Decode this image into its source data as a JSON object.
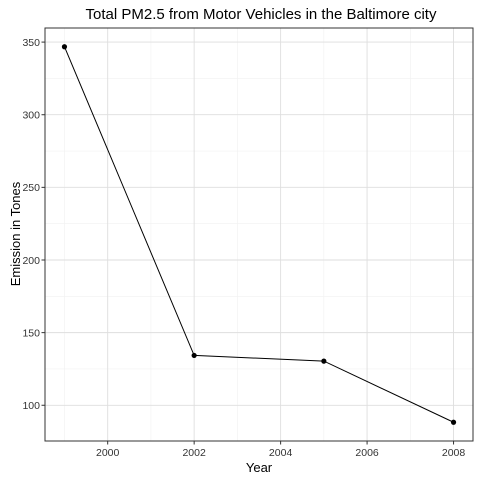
{
  "chart_data": {
    "type": "line",
    "title": "Total PM2.5 from Motor Vehicles in the Baltimore city",
    "xlabel": "Year",
    "ylabel": "Emission in Tones",
    "x": [
      1999,
      2002,
      2005,
      2008
    ],
    "series": [
      {
        "values": [
          346.8,
          134.3,
          130.4,
          88.3
        ]
      }
    ],
    "xlim": [
      1998.55,
      2008.45
    ],
    "ylim": [
      75.4,
      359.7
    ],
    "xticks": [
      2000,
      2002,
      2004,
      2006,
      2008
    ],
    "yticks": [
      100,
      150,
      200,
      250,
      300,
      350
    ],
    "x_tick_labels": [
      "2000",
      "2002",
      "2004",
      "2006",
      "2008"
    ],
    "y_tick_labels": [
      "100",
      "150",
      "200",
      "250",
      "300",
      "350"
    ],
    "grid": true,
    "legend": "none",
    "colors": {
      "line": "#000000",
      "point": "#000000",
      "grid": "#dedede",
      "border": "#333333"
    }
  }
}
